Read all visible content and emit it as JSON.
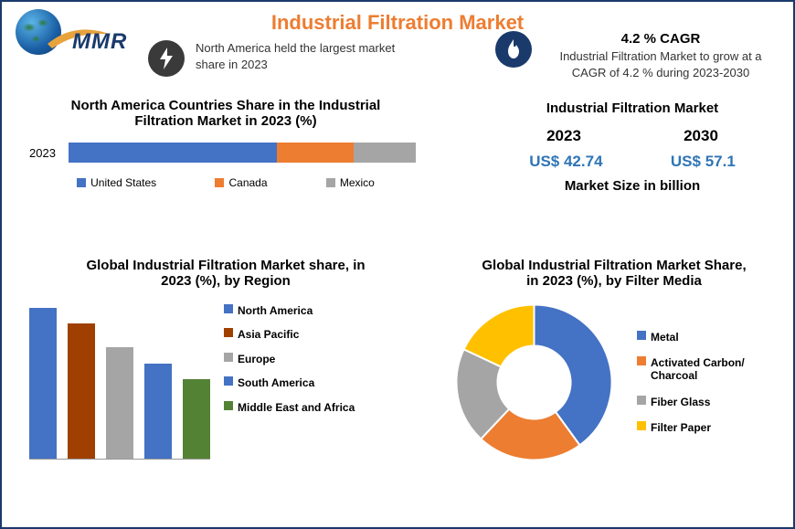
{
  "brand": {
    "name": "MMR"
  },
  "title": {
    "text": "Industrial Filtration Market",
    "color": "#ed7d31"
  },
  "highlight_left": {
    "icon": "bolt",
    "icon_bg": "#3a3a3a",
    "text": "North America held the largest market share in 2023"
  },
  "highlight_right": {
    "icon": "flame",
    "icon_bg": "#1a3a6b",
    "title": "4.2 % CAGR",
    "text": "Industrial Filtration Market to grow at a CAGR of 4.2 % during 2023-2030"
  },
  "stacked_chart": {
    "type": "stacked-bar-horizontal",
    "title": "North America Countries Share in the  Industrial Filtration Market  in 2023 (%)",
    "y_label": "2023",
    "series": [
      {
        "name": "United States",
        "value": 60,
        "color": "#4472c4"
      },
      {
        "name": "Canada",
        "value": 22,
        "color": "#ed7d31"
      },
      {
        "name": "Mexico",
        "value": 18,
        "color": "#a5a5a5"
      }
    ]
  },
  "market_size": {
    "title": "Industrial Filtration Market",
    "years": [
      "2023",
      "2030"
    ],
    "values": [
      "US$ 42.74",
      "US$ 57.1"
    ],
    "value_color": "#2e75b6",
    "caption": "Market Size in billion"
  },
  "bar_chart": {
    "type": "bar",
    "title": "Global Industrial Filtration Market share, in 2023 (%), by Region",
    "max": 40,
    "series": [
      {
        "name": "North America",
        "value": 38,
        "color": "#4472c4"
      },
      {
        "name": "Asia Pacific",
        "value": 34,
        "color": "#a04000"
      },
      {
        "name": "Europe",
        "value": 28,
        "color": "#a5a5a5"
      },
      {
        "name": "South America",
        "value": 24,
        "color": "#4472c4"
      },
      {
        "name": "Middle East and Africa",
        "value": 20,
        "color": "#548235"
      }
    ]
  },
  "donut_chart": {
    "type": "donut",
    "title": "Global Industrial Filtration Market Share, in 2023 (%), by Filter Media",
    "inner_radius": 40,
    "outer_radius": 85,
    "series": [
      {
        "name": "Metal",
        "value": 40,
        "color": "#4472c4"
      },
      {
        "name": " Activated Carbon/ Charcoal",
        "value": 22,
        "color": "#ed7d31"
      },
      {
        "name": "Fiber Glass",
        "value": 20,
        "color": "#a5a5a5"
      },
      {
        "name": "Filter Paper",
        "value": 18,
        "color": "#ffc000"
      }
    ]
  }
}
